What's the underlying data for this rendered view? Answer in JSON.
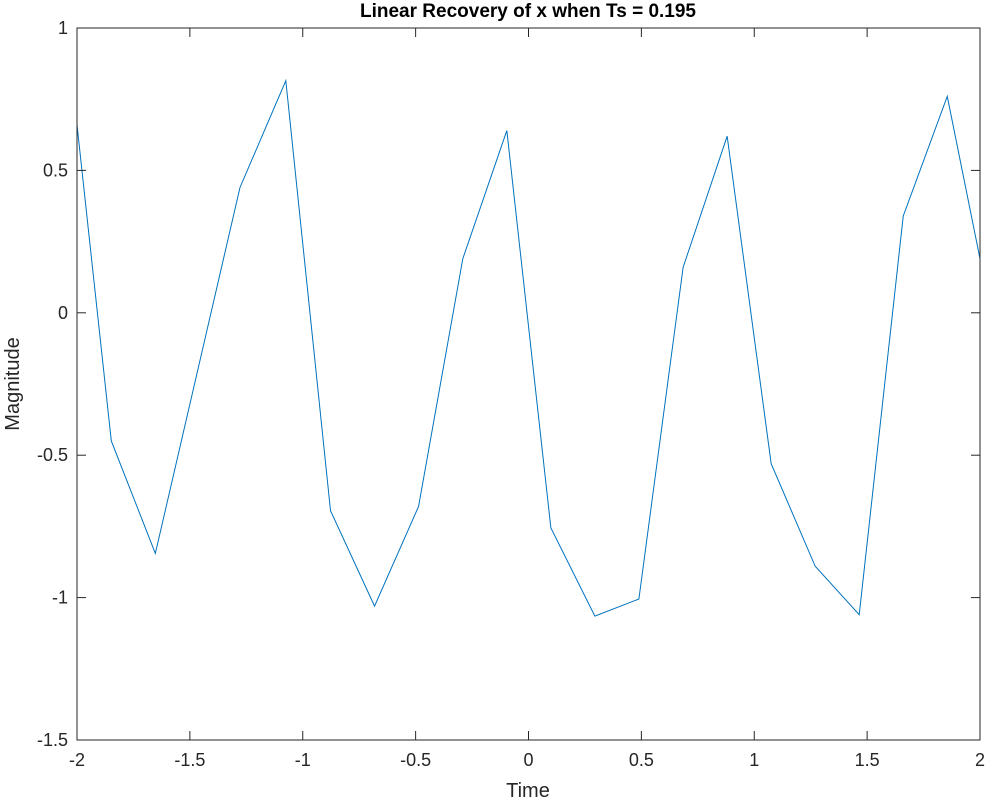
{
  "chart_data": {
    "type": "line",
    "title": "Linear Recovery of x when Ts = 0.195",
    "xlabel": "Time",
    "ylabel": "Magnitude",
    "xlim": [
      -2,
      2
    ],
    "ylim": [
      -1.5,
      1
    ],
    "xticks": [
      -2,
      -1.5,
      -1,
      -0.5,
      0,
      0.5,
      1,
      1.5,
      2
    ],
    "xtick_labels": [
      "-2",
      "-1.5",
      "-1",
      "-0.5",
      "0",
      "0.5",
      "1",
      "1.5",
      "2"
    ],
    "yticks": [
      -1.5,
      -1,
      -0.5,
      0,
      0.5,
      1
    ],
    "ytick_labels": [
      "-1.5",
      "-1",
      "-0.5",
      "0",
      "0.5",
      "1"
    ],
    "grid": false,
    "series": [
      {
        "color": "#0072BD",
        "x": [
          -2.0,
          -1.848,
          -1.653,
          -1.278,
          -1.075,
          -0.877,
          -0.682,
          -0.487,
          -0.291,
          -0.096,
          0.099,
          0.294,
          0.489,
          0.685,
          0.88,
          1.075,
          1.27,
          1.465,
          1.66,
          1.855,
          2.0
        ],
        "y": [
          0.66,
          -0.45,
          -0.845,
          0.44,
          0.815,
          -0.695,
          -1.03,
          -0.68,
          0.19,
          0.64,
          -0.755,
          -1.065,
          -1.005,
          0.16,
          0.62,
          -0.53,
          -0.89,
          -1.06,
          0.34,
          0.76,
          0.19
        ]
      }
    ]
  }
}
